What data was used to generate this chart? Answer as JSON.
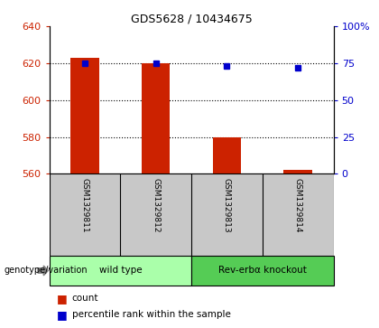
{
  "title": "GDS5628 / 10434675",
  "samples": [
    "GSM1329811",
    "GSM1329812",
    "GSM1329813",
    "GSM1329814"
  ],
  "count_values": [
    623,
    620,
    580,
    562
  ],
  "baseline": 560,
  "percentile_values": [
    75,
    75,
    73,
    72
  ],
  "ylim_left": [
    560,
    640
  ],
  "ylim_right": [
    0,
    100
  ],
  "yticks_left": [
    560,
    580,
    600,
    620,
    640
  ],
  "yticks_right": [
    0,
    25,
    50,
    75,
    100
  ],
  "ytick_labels_right": [
    "0",
    "25",
    "50",
    "75",
    "100%"
  ],
  "bar_color": "#cc2200",
  "dot_color": "#0000cc",
  "groups": [
    {
      "label": "wild type",
      "samples": [
        0,
        1
      ],
      "color": "#aaffaa"
    },
    {
      "label": "Rev-erbα knockout",
      "samples": [
        2,
        3
      ],
      "color": "#55cc55"
    }
  ],
  "group_label": "genotype/variation",
  "legend_items": [
    {
      "color": "#cc2200",
      "label": "count"
    },
    {
      "color": "#0000cc",
      "label": "percentile rank within the sample"
    }
  ],
  "left_tick_color": "#cc2200",
  "right_tick_color": "#0000cc",
  "bar_width": 0.4
}
